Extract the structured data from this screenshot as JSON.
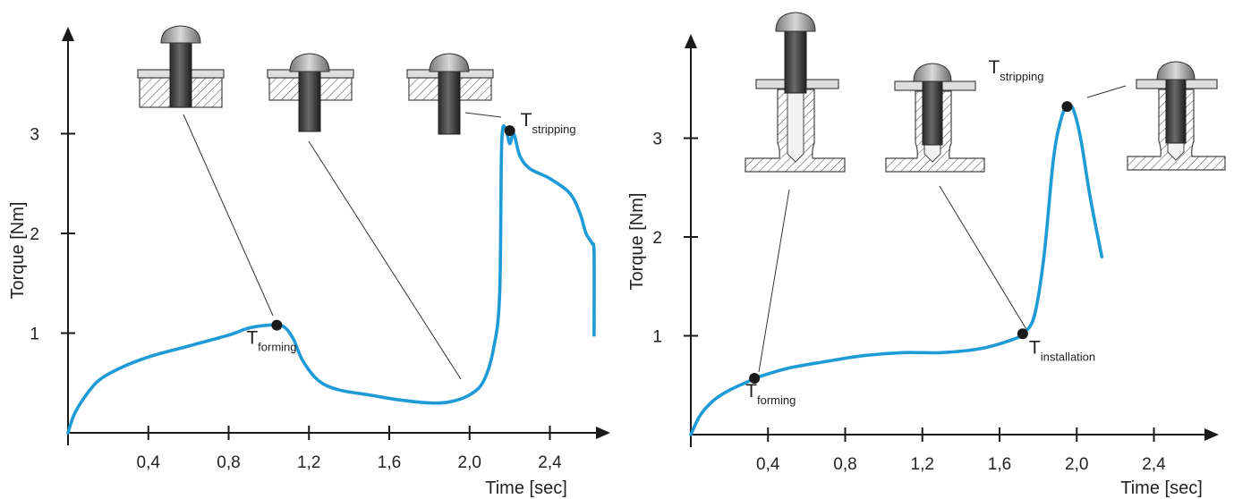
{
  "chart_data": [
    {
      "type": "line",
      "xlabel": "Time [sec]",
      "ylabel": "Torque [Nm]",
      "xlim": [
        0,
        2.6
      ],
      "ylim": [
        0,
        3.5
      ],
      "x_tick_labels": [
        "0,4",
        "0,8",
        "1,2",
        "1,6",
        "2,0",
        "2,4"
      ],
      "y_tick_labels": [
        "1",
        "2",
        "3"
      ],
      "series": [
        {
          "color": "#1e9bd7",
          "points": [
            [
              0,
              0
            ],
            [
              0.03,
              0.18
            ],
            [
              0.08,
              0.35
            ],
            [
              0.15,
              0.52
            ],
            [
              0.25,
              0.64
            ],
            [
              0.4,
              0.76
            ],
            [
              0.6,
              0.87
            ],
            [
              0.8,
              0.98
            ],
            [
              0.9,
              1.05
            ],
            [
              1.0,
              1.08
            ],
            [
              1.07,
              1.07
            ],
            [
              1.12,
              0.95
            ],
            [
              1.17,
              0.72
            ],
            [
              1.25,
              0.52
            ],
            [
              1.35,
              0.43
            ],
            [
              1.5,
              0.38
            ],
            [
              1.65,
              0.33
            ],
            [
              1.8,
              0.3
            ],
            [
              1.9,
              0.31
            ],
            [
              2.0,
              0.38
            ],
            [
              2.07,
              0.52
            ],
            [
              2.12,
              0.85
            ],
            [
              2.15,
              1.4
            ],
            [
              2.16,
              2.9
            ],
            [
              2.18,
              3.05
            ],
            [
              2.2,
              2.9
            ],
            [
              2.22,
              3.0
            ],
            [
              2.25,
              2.78
            ],
            [
              2.3,
              2.65
            ],
            [
              2.4,
              2.55
            ],
            [
              2.5,
              2.4
            ],
            [
              2.55,
              2.2
            ],
            [
              2.58,
              2.0
            ],
            [
              2.61,
              1.9
            ],
            [
              2.62,
              1.8
            ],
            [
              2.62,
              0.98
            ]
          ]
        }
      ],
      "annotations": [
        {
          "symbol": "T",
          "subscript": "forming",
          "x": 1.04,
          "y": 1.08
        },
        {
          "symbol": "T",
          "subscript": "stripping",
          "x": 2.2,
          "y": 3.03
        }
      ]
    },
    {
      "type": "line",
      "xlabel": "Time [sec]",
      "ylabel": "Torque [Nm]",
      "xlim": [
        0,
        2.2
      ],
      "ylim": [
        0,
        3.5
      ],
      "x_tick_labels": [
        "0,4",
        "0,8",
        "1,2",
        "1,6",
        "2,0",
        "2,4"
      ],
      "y_tick_labels": [
        "1",
        "2",
        "3"
      ],
      "series": [
        {
          "color": "#1e9bd7",
          "points": [
            [
              0,
              0
            ],
            [
              0.05,
              0.2
            ],
            [
              0.12,
              0.35
            ],
            [
              0.2,
              0.45
            ],
            [
              0.3,
              0.54
            ],
            [
              0.33,
              0.57
            ],
            [
              0.5,
              0.67
            ],
            [
              0.7,
              0.74
            ],
            [
              0.9,
              0.8
            ],
            [
              1.1,
              0.83
            ],
            [
              1.3,
              0.83
            ],
            [
              1.5,
              0.87
            ],
            [
              1.65,
              0.95
            ],
            [
              1.72,
              1.02
            ],
            [
              1.78,
              1.2
            ],
            [
              1.83,
              1.8
            ],
            [
              1.88,
              2.8
            ],
            [
              1.92,
              3.2
            ],
            [
              1.95,
              3.32
            ],
            [
              1.98,
              3.3
            ],
            [
              2.02,
              3.0
            ],
            [
              2.07,
              2.4
            ],
            [
              2.13,
              1.8
            ]
          ]
        }
      ],
      "annotations": [
        {
          "symbol": "T",
          "subscript": "forming",
          "x": 0.33,
          "y": 0.57
        },
        {
          "symbol": "T",
          "subscript": "installation",
          "x": 1.72,
          "y": 1.02
        },
        {
          "symbol": "T",
          "subscript": "stripping",
          "x": 1.95,
          "y": 3.32
        }
      ]
    }
  ]
}
